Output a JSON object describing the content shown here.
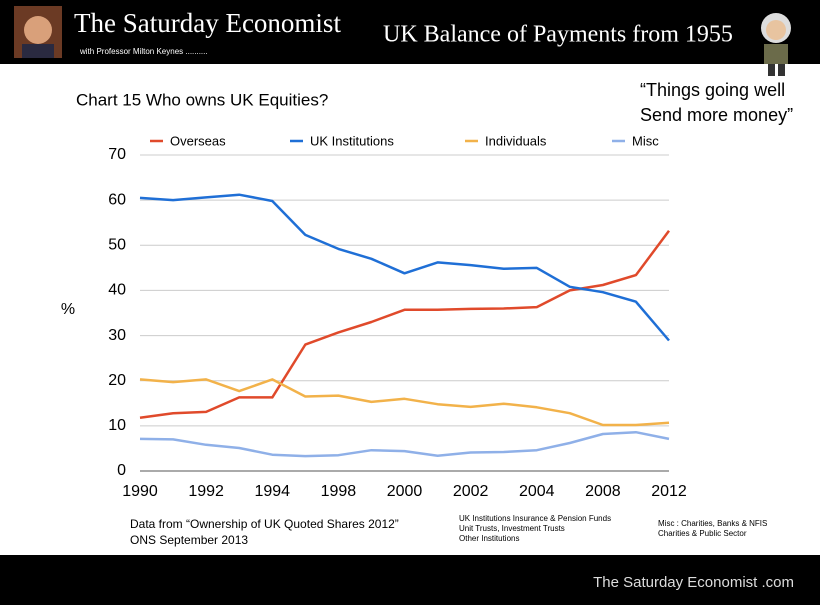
{
  "header": {
    "title": "The Saturday Economist",
    "subtitle": "with Professor Milton Keynes ..........",
    "slide_title": "UK Balance of Payments from 1955"
  },
  "quote": [
    "“Things going well",
    "Send more money”"
  ],
  "chart_data": {
    "type": "line",
    "title": "Chart 15 Who owns UK Equities?",
    "y_label": "%",
    "categories": [
      "1990",
      null,
      "1992",
      null,
      "1994",
      null,
      "1998",
      null,
      "2000",
      null,
      "2002",
      null,
      "2004",
      null,
      "2008",
      null,
      "2012"
    ],
    "series": [
      {
        "name": "Overseas",
        "color": "#e04a2b",
        "values": [
          11.8,
          12.8,
          13.1,
          16.3,
          16.3,
          28.0,
          30.7,
          33.0,
          35.7,
          35.7,
          35.9,
          36.0,
          36.3,
          40.0,
          41.2,
          43.4,
          53.2
        ]
      },
      {
        "name": "UK Institutions",
        "color": "#1f6fd6",
        "values": [
          60.5,
          60.0,
          60.6,
          61.2,
          59.8,
          52.3,
          49.2,
          47.0,
          43.8,
          46.2,
          45.6,
          44.8,
          45.0,
          40.8,
          39.6,
          37.5,
          28.9
        ]
      },
      {
        "name": "Individuals",
        "color": "#f2b24a",
        "values": [
          20.3,
          19.7,
          20.3,
          17.7,
          20.3,
          16.5,
          16.7,
          15.3,
          16.0,
          14.8,
          14.2,
          14.9,
          14.1,
          12.8,
          10.2,
          10.2,
          10.7
        ]
      },
      {
        "name": "Misc",
        "color": "#8fb0e8",
        "values": [
          7.1,
          7.0,
          5.8,
          5.1,
          3.6,
          3.3,
          3.5,
          4.6,
          4.4,
          3.4,
          4.1,
          4.2,
          4.6,
          6.2,
          8.2,
          8.6,
          7.1
        ]
      }
    ],
    "ylim": [
      0,
      70
    ],
    "yticks": [
      0,
      10,
      20,
      30,
      40,
      50,
      60,
      70
    ],
    "grid": true,
    "legend": "top"
  },
  "notes": {
    "source": [
      "Data from “Ownership of UK Quoted Shares 2012”",
      "ONS September 2013"
    ],
    "institutions": [
      "UK Institutions Insurance & Pension Funds",
      "Unit Trusts, Investment Trusts",
      "Other Institutions"
    ],
    "misc": [
      "Misc : Charities, Banks & NFIS",
      "Charities & Public Sector"
    ]
  },
  "footer": "The Saturday Economist .com"
}
